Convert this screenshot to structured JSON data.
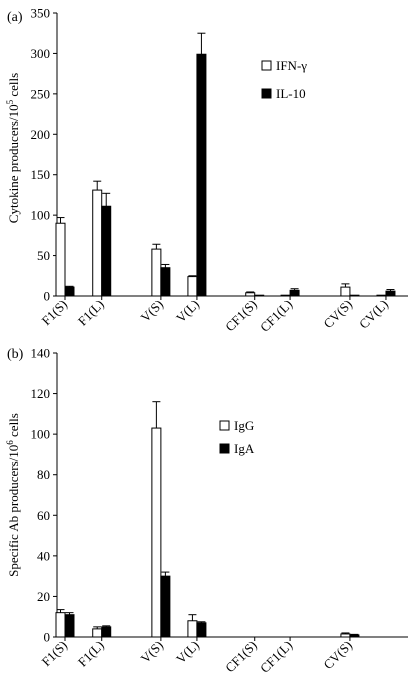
{
  "chart_data": [
    {
      "type": "bar",
      "panel_label": "(a)",
      "ylabel": "Cytokine producers/10",
      "ylabel_sup": "5",
      "ylabel_tail": " cells",
      "ylim": [
        0,
        350
      ],
      "ytick_step": 50,
      "yticks": [
        "0",
        "50",
        "100",
        "150",
        "200",
        "250",
        "300",
        "350"
      ],
      "categories": [
        "F1(S)",
        "F1(L)",
        "V(S)",
        "V(L)",
        "CF1(S)",
        "CF1(L)",
        "CV(S)",
        "CV(L)"
      ],
      "legend_position": "top-right",
      "series": [
        {
          "name": "IFN-γ",
          "color": "#ffffff",
          "values": [
            90,
            131,
            58,
            24,
            4,
            1,
            11,
            1
          ],
          "errors": [
            7,
            11,
            6,
            1,
            1,
            0,
            4,
            0
          ]
        },
        {
          "name": "IL-10",
          "color": "#000000",
          "values": [
            11,
            111,
            35,
            299,
            1,
            7,
            1,
            6
          ],
          "errors": [
            1,
            16,
            4,
            26,
            0,
            2,
            0,
            2
          ]
        }
      ]
    },
    {
      "type": "bar",
      "panel_label": "(b)",
      "ylabel": "Specific Ab producers/10",
      "ylabel_sup": "6",
      "ylabel_tail": " cells",
      "ylim": [
        0,
        140
      ],
      "ytick_step": 20,
      "yticks": [
        "0",
        "20",
        "40",
        "60",
        "80",
        "100",
        "120",
        "140"
      ],
      "categories": [
        "F1(S)",
        "F1(L)",
        "V(S)",
        "V(L)",
        "CF1(S)",
        "CF1(L)",
        "CV(S)"
      ],
      "legend_position": "top-center",
      "series": [
        {
          "name": "IgG",
          "color": "#ffffff",
          "values": [
            12,
            4,
            103,
            8,
            0,
            0,
            1.5
          ],
          "errors": [
            1.5,
            1,
            13,
            3,
            0,
            0,
            0.5
          ]
        },
        {
          "name": "IgA",
          "color": "#000000",
          "values": [
            11,
            5,
            30,
            7,
            0,
            0,
            1
          ],
          "errors": [
            1,
            0.5,
            2,
            0.5,
            0,
            0,
            0.3
          ]
        }
      ]
    }
  ]
}
